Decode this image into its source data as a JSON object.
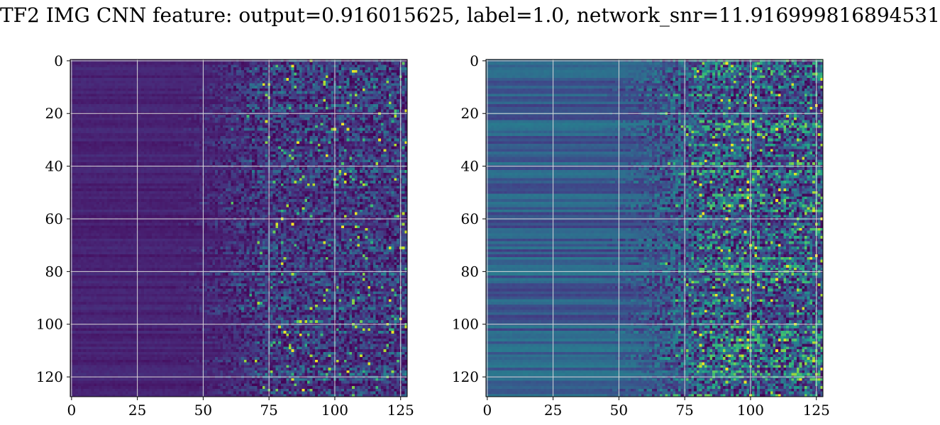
{
  "figure": {
    "title": "TF2 IMG CNN feature: output=0.916015625, label=1.0, network_snr=11.916999816894531"
  },
  "chart_data": [
    {
      "type": "heatmap",
      "name": "left-heatmap",
      "rows": 128,
      "cols": 128,
      "colormap": "viridis",
      "xlim": [
        0,
        127
      ],
      "ylim": [
        127,
        0
      ],
      "x_ticks": [
        0,
        25,
        50,
        75,
        100,
        125
      ],
      "y_ticks": [
        0,
        20,
        40,
        60,
        80,
        100,
        120
      ],
      "grid": true,
      "texture": {
        "baseline": 0.08,
        "transition_col": 60,
        "high_mean": 0.22,
        "spike_prob": 0.03
      }
    },
    {
      "type": "heatmap",
      "name": "right-heatmap",
      "rows": 128,
      "cols": 128,
      "colormap": "viridis",
      "xlim": [
        0,
        127
      ],
      "ylim": [
        127,
        0
      ],
      "x_ticks": [
        0,
        25,
        50,
        75,
        100,
        125
      ],
      "y_ticks": [
        0,
        20,
        40,
        60,
        80,
        100,
        120
      ],
      "grid": true,
      "texture": {
        "baseline": 0.28,
        "transition_col": 65,
        "high_mean": 0.38,
        "spike_prob": 0.04
      }
    }
  ],
  "colors": {
    "grid": "#d9d9d9",
    "axis": "#000000",
    "viridis": [
      "#440154",
      "#482878",
      "#3e4989",
      "#31688e",
      "#26828e",
      "#1f9e89",
      "#35b779",
      "#6ece58",
      "#b5de2b",
      "#fde725"
    ]
  }
}
